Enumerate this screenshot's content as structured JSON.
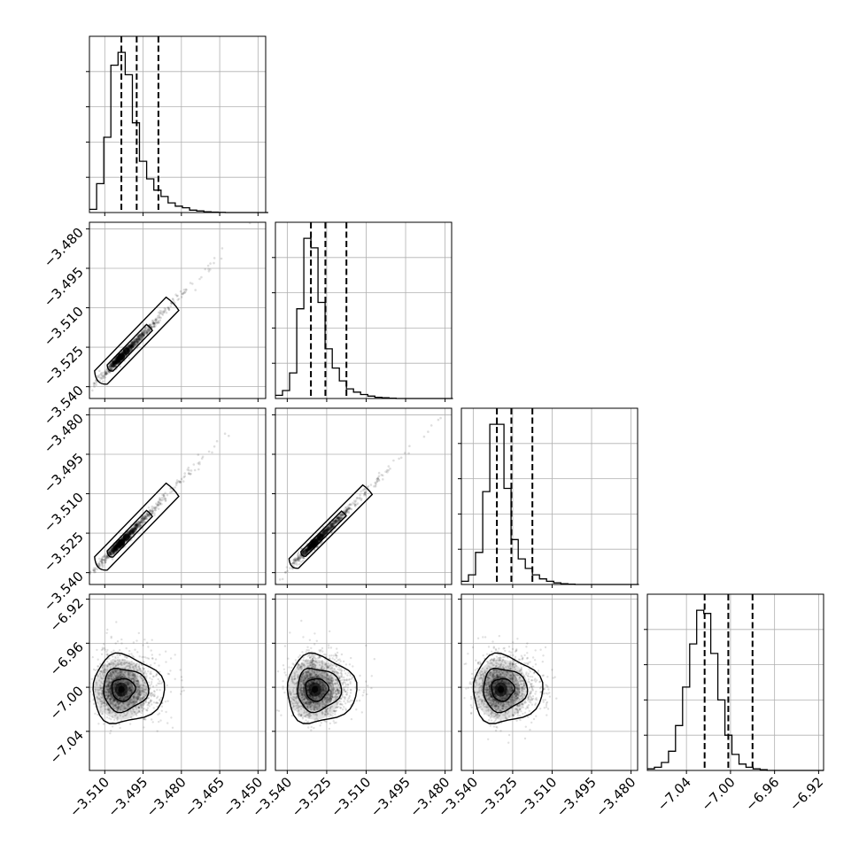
{
  "chart_data": {
    "type": "corner",
    "parameters": [
      {
        "xlim": [
          -3.516,
          -3.447
        ],
        "xticks": [
          -3.51,
          -3.495,
          -3.48,
          -3.465,
          -3.45
        ],
        "xtick_labels": [
          "−3.510",
          "−3.495",
          "−3.480",
          "−3.465",
          "−3.450"
        ],
        "quantiles": [
          -3.5035,
          -3.4975,
          -3.489
        ],
        "histogram": {
          "start": -3.516,
          "bin_width": 0.0028,
          "counts": [
            0.02,
            0.18,
            0.47,
            0.92,
            1.0,
            0.86,
            0.56,
            0.32,
            0.21,
            0.14,
            0.1,
            0.06,
            0.04,
            0.03,
            0.015,
            0.01,
            0.005,
            0.003,
            0.001,
            0.0,
            0.0,
            0.0,
            0.0,
            0.0,
            0.0
          ],
          "ymax_factor": 1.1,
          "ytick_fractions": [
            0.2,
            0.4,
            0.6,
            0.8
          ]
        }
      },
      {
        "xlim": [
          -3.5445,
          -3.4775
        ],
        "xticks": [
          -3.54,
          -3.525,
          -3.51,
          -3.495,
          -3.48
        ],
        "xtick_labels": [
          "−3.540",
          "−3.525",
          "−3.510",
          "−3.495",
          "−3.480"
        ],
        "yticks": [
          -3.48,
          -3.495,
          -3.51,
          -3.525,
          -3.54
        ],
        "ytick_labels": [
          "−3.480",
          "−3.495",
          "−3.510",
          "−3.525",
          "−3.540"
        ],
        "quantiles": [
          -3.531,
          -3.5255,
          -3.5175
        ],
        "histogram": {
          "start": -3.5445,
          "bin_width": 0.0027,
          "counts": [
            0.02,
            0.05,
            0.16,
            0.56,
            1.0,
            0.94,
            0.6,
            0.31,
            0.19,
            0.11,
            0.06,
            0.04,
            0.025,
            0.015,
            0.008,
            0.005,
            0.002,
            0.0,
            0.0,
            0.0,
            0.0,
            0.0,
            0.0,
            0.0,
            0.0
          ],
          "ymax_factor": 1.1,
          "ytick_fractions": [
            0.2,
            0.4,
            0.6,
            0.8
          ]
        }
      },
      {
        "xlim": [
          -3.5445,
          -3.4775
        ],
        "xticks": [
          -3.54,
          -3.525,
          -3.51,
          -3.495,
          -3.48
        ],
        "xtick_labels": [
          "−3.540",
          "−3.525",
          "−3.510",
          "−3.495",
          "−3.480"
        ],
        "yticks": [
          -3.48,
          -3.495,
          -3.51,
          -3.525,
          -3.54
        ],
        "ytick_labels": [
          "−3.480",
          "−3.495",
          "−3.510",
          "−3.525",
          "−3.540"
        ],
        "quantiles": [
          -3.531,
          -3.5255,
          -3.5175
        ],
        "histogram": {
          "start": -3.5445,
          "bin_width": 0.0027,
          "counts": [
            0.02,
            0.06,
            0.2,
            0.58,
            1.0,
            1.0,
            0.6,
            0.28,
            0.16,
            0.1,
            0.06,
            0.035,
            0.02,
            0.01,
            0.005,
            0.002,
            0.0,
            0.0,
            0.0,
            0.0,
            0.0,
            0.0,
            0.0,
            0.0,
            0.0
          ],
          "ymax_factor": 1.1,
          "ytick_fractions": [
            0.2,
            0.4,
            0.6,
            0.8
          ]
        }
      },
      {
        "xlim": [
          -7.0755,
          -6.9155
        ],
        "xticks": [
          -7.04,
          -7.0,
          -6.96,
          -6.92
        ],
        "xtick_labels": [
          "−7.04",
          "−7.00",
          "−6.96",
          "−6.92"
        ],
        "yticks": [
          -6.92,
          -6.96,
          -7.0,
          -7.04
        ],
        "ytick_labels": [
          "−6.92",
          "−6.96",
          "−7.00",
          "−7.04"
        ],
        "quantiles": [
          -7.0235,
          -7.002,
          -6.98
        ],
        "histogram": {
          "start": -7.0755,
          "bin_width": 0.0064,
          "counts": [
            0.01,
            0.02,
            0.05,
            0.12,
            0.28,
            0.52,
            0.79,
            1.0,
            0.98,
            0.73,
            0.44,
            0.22,
            0.1,
            0.04,
            0.02,
            0.01,
            0.005,
            0.0,
            0.0,
            0.0,
            0.0,
            0.0,
            0.0,
            0.0,
            0.0
          ],
          "ymax_factor": 1.1,
          "ytick_fractions": [
            0.2,
            0.4,
            0.6,
            0.8
          ]
        }
      }
    ],
    "pairs": [
      {
        "row": 1,
        "col": 0,
        "kind": "correlated",
        "center": [
          -3.5035,
          -3.5285
        ],
        "slope": 1.0,
        "samples": 1300,
        "contour_halfwidths": [
          0.00115,
          0.0025
        ]
      },
      {
        "row": 2,
        "col": 0,
        "kind": "correlated",
        "center": [
          -3.5035,
          -3.5285
        ],
        "slope": 1.0,
        "samples": 1300,
        "contour_halfwidths": [
          0.00115,
          0.0025
        ]
      },
      {
        "row": 2,
        "col": 1,
        "kind": "correlated",
        "center": [
          -3.5295,
          -3.5285
        ],
        "slope": 1.0,
        "samples": 1300,
        "contour_halfwidths": [
          0.0009,
          0.0018
        ]
      },
      {
        "row": 3,
        "col": 0,
        "kind": "blob",
        "center": [
          -3.5035,
          -7.002
        ],
        "spread": [
          0.0055,
          0.0135
        ],
        "samples": 1600,
        "contour_scales": [
          0.75,
          1.45,
          2.3
        ]
      },
      {
        "row": 3,
        "col": 1,
        "kind": "blob",
        "center": [
          -3.5295,
          -7.002
        ],
        "spread": [
          0.0052,
          0.0135
        ],
        "samples": 1600,
        "contour_scales": [
          0.75,
          1.45,
          2.3
        ]
      },
      {
        "row": 3,
        "col": 2,
        "kind": "blob",
        "center": [
          -3.5295,
          -7.002
        ],
        "spread": [
          0.0052,
          0.0135
        ],
        "samples": 1600,
        "contour_scales": [
          0.75,
          1.45,
          2.3
        ]
      }
    ]
  }
}
